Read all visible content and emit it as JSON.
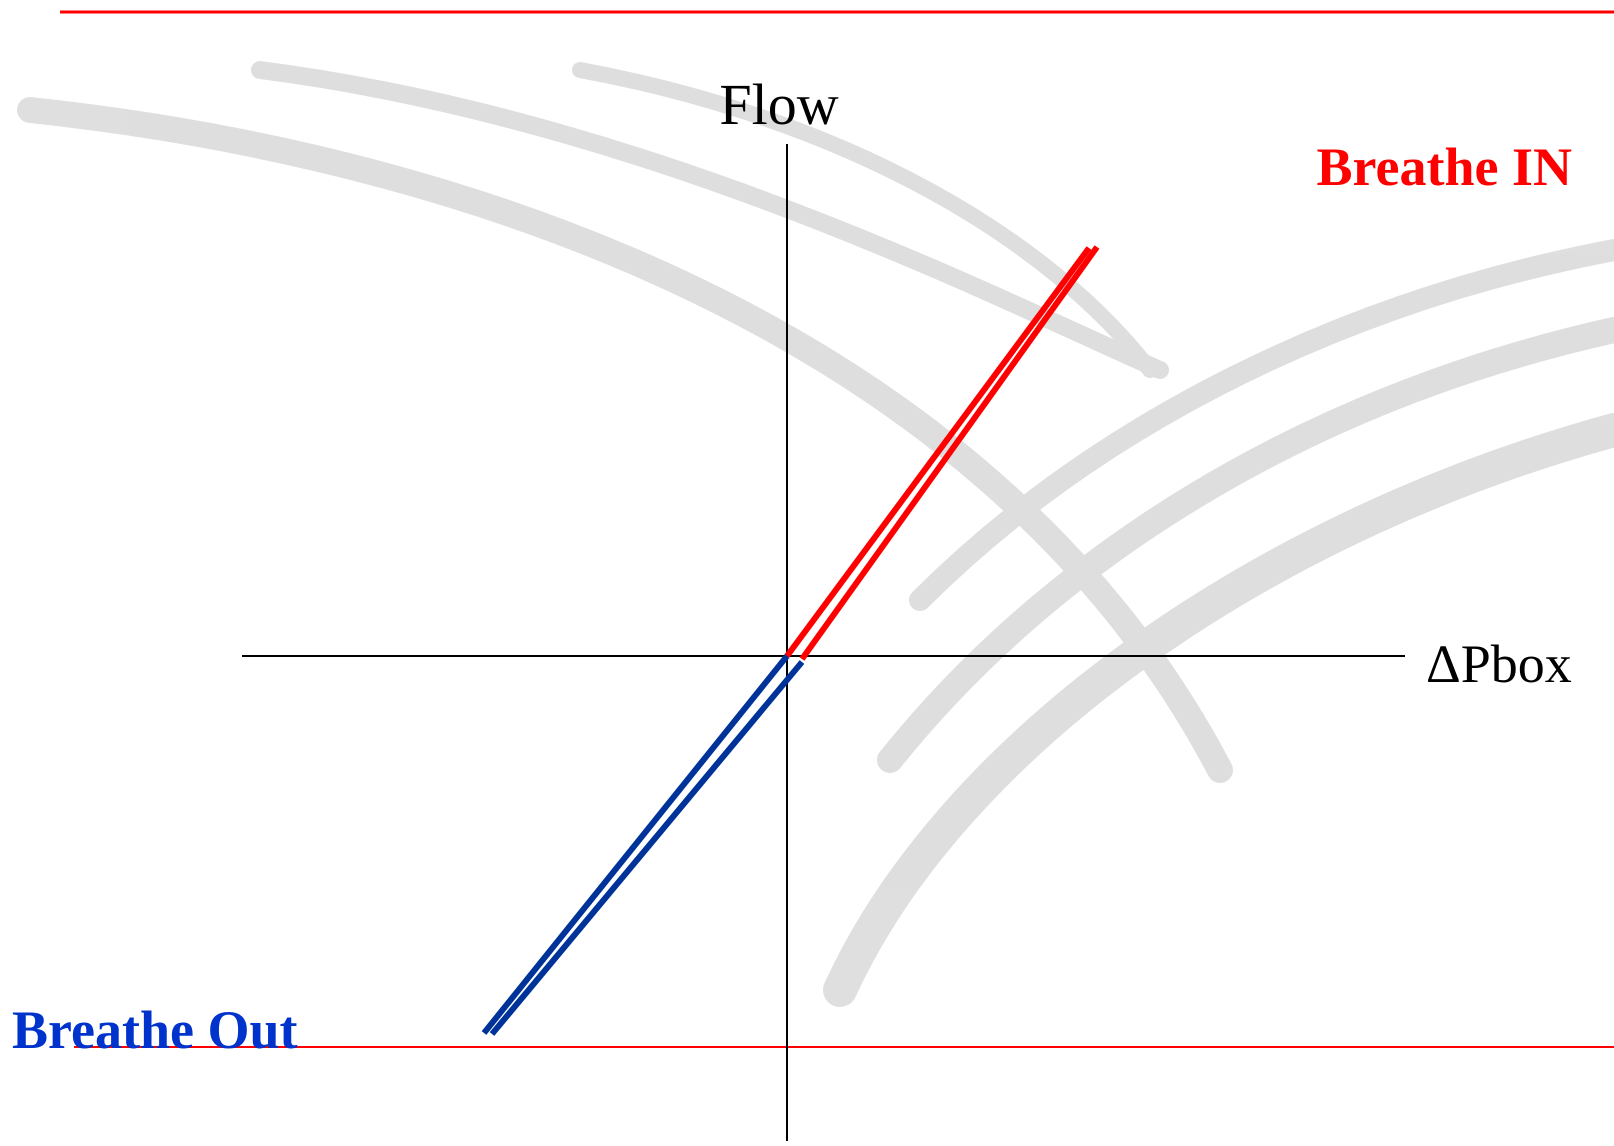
{
  "axes": {
    "y_label": "Flow",
    "x_label": "ΔPbox"
  },
  "labels": {
    "inhale": "Breathe IN",
    "exhale": "Breathe Out"
  }
}
